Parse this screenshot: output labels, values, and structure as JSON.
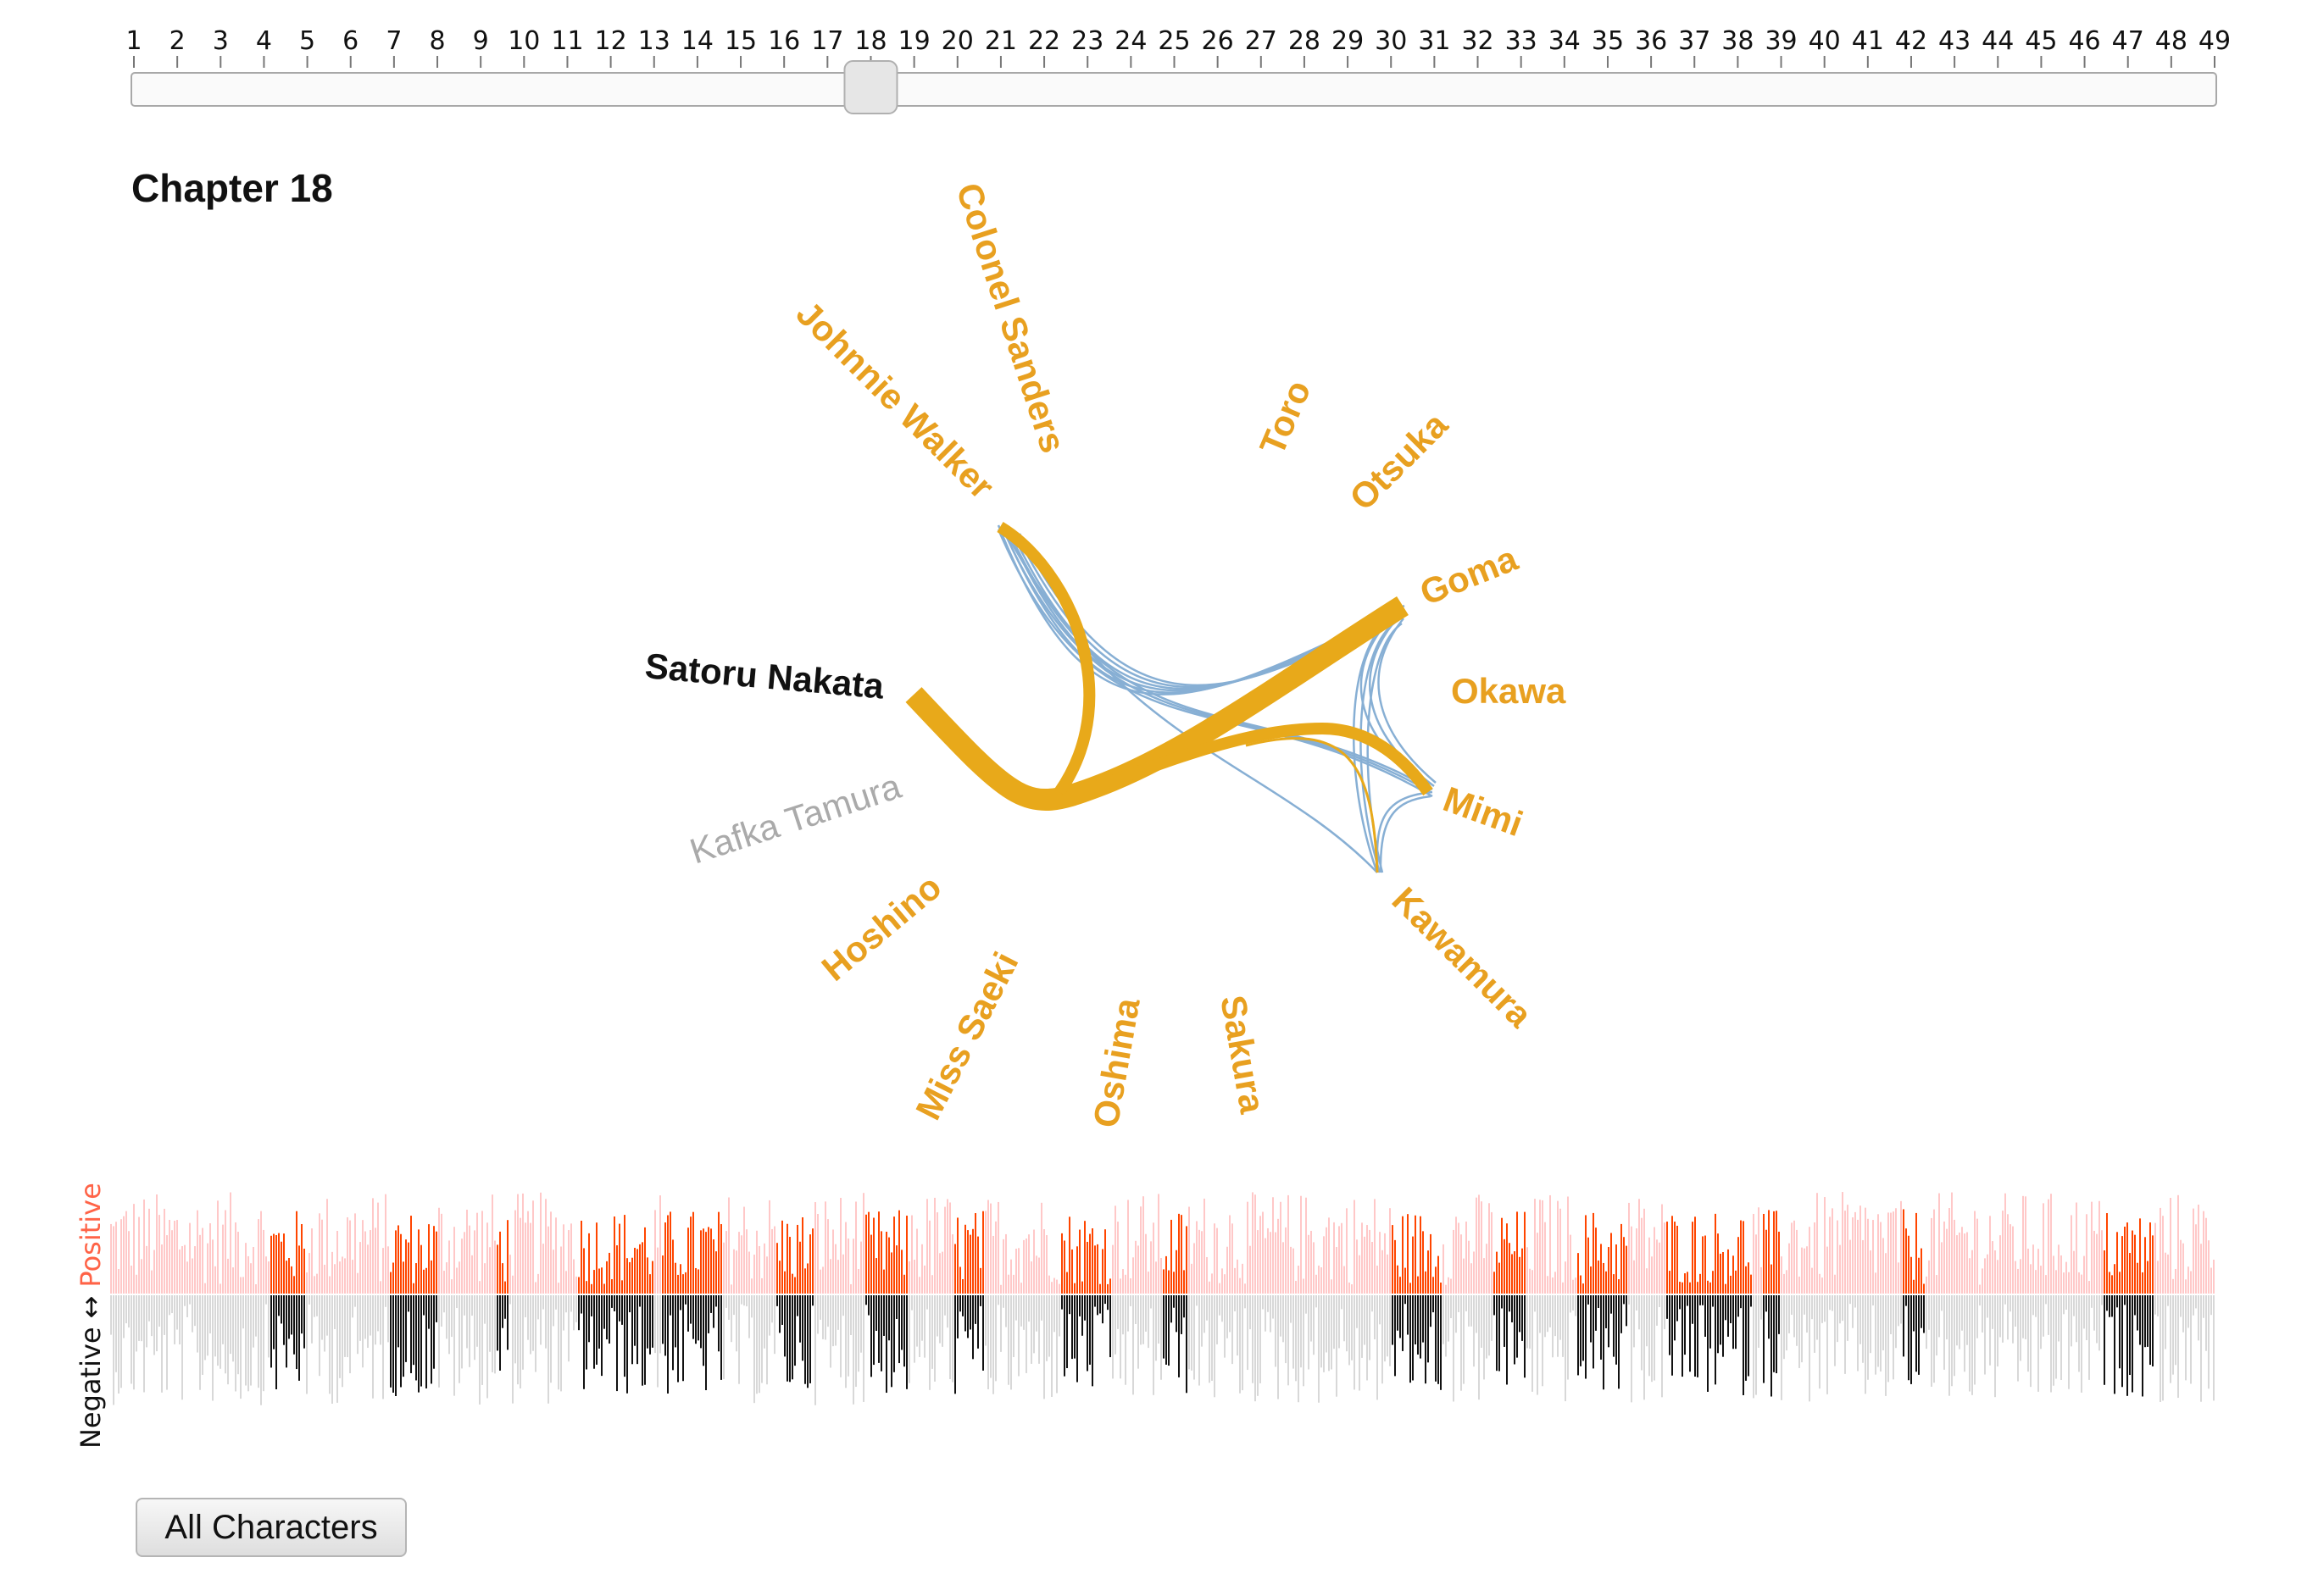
{
  "slider": {
    "ticks": [
      "1",
      "2",
      "3",
      "4",
      "5",
      "6",
      "7",
      "8",
      "9",
      "10",
      "11",
      "12",
      "13",
      "14",
      "15",
      "16",
      "17",
      "18",
      "19",
      "20",
      "21",
      "22",
      "23",
      "24",
      "25",
      "26",
      "27",
      "28",
      "29",
      "30",
      "31",
      "32",
      "33",
      "34",
      "35",
      "36",
      "37",
      "38",
      "39",
      "40",
      "41",
      "42",
      "43",
      "44",
      "45",
      "46",
      "47",
      "48",
      "49"
    ],
    "value": 18
  },
  "chapter_title": "Chapter 18",
  "characters": {
    "colonel_sanders": "Colonel Sanders",
    "johnnie_walker": "Johnnie Walker",
    "toro": "Toro",
    "otsuka": "Otsuka",
    "goma": "Goma",
    "okawa": "Okawa",
    "mimi": "Mimi",
    "kawamura": "Kawamura",
    "satoru_nakata": "Satoru Nakata",
    "kafka_tamura": "Kafka Tamura",
    "hoshino": "Hoshino",
    "miss_saeki": "Miss Saeki",
    "oshima": "Oshima",
    "sakura": "Sakura"
  },
  "sentiment_axis": {
    "negative": "Negative",
    "arrow": "↔",
    "positive": "Positive"
  },
  "all_characters_button": "All Characters",
  "colors": {
    "character": "#e8a020",
    "selected_character": "#111111",
    "inactive_character": "#aaaaaa",
    "link_active": "#e8a91a",
    "link_other": "#7ba7d0",
    "positive_bar": "#ff4500",
    "positive_bar_faint": "#ffc8c8",
    "negative_bar": "#111111",
    "negative_bar_faint": "#d8d8d8"
  }
}
